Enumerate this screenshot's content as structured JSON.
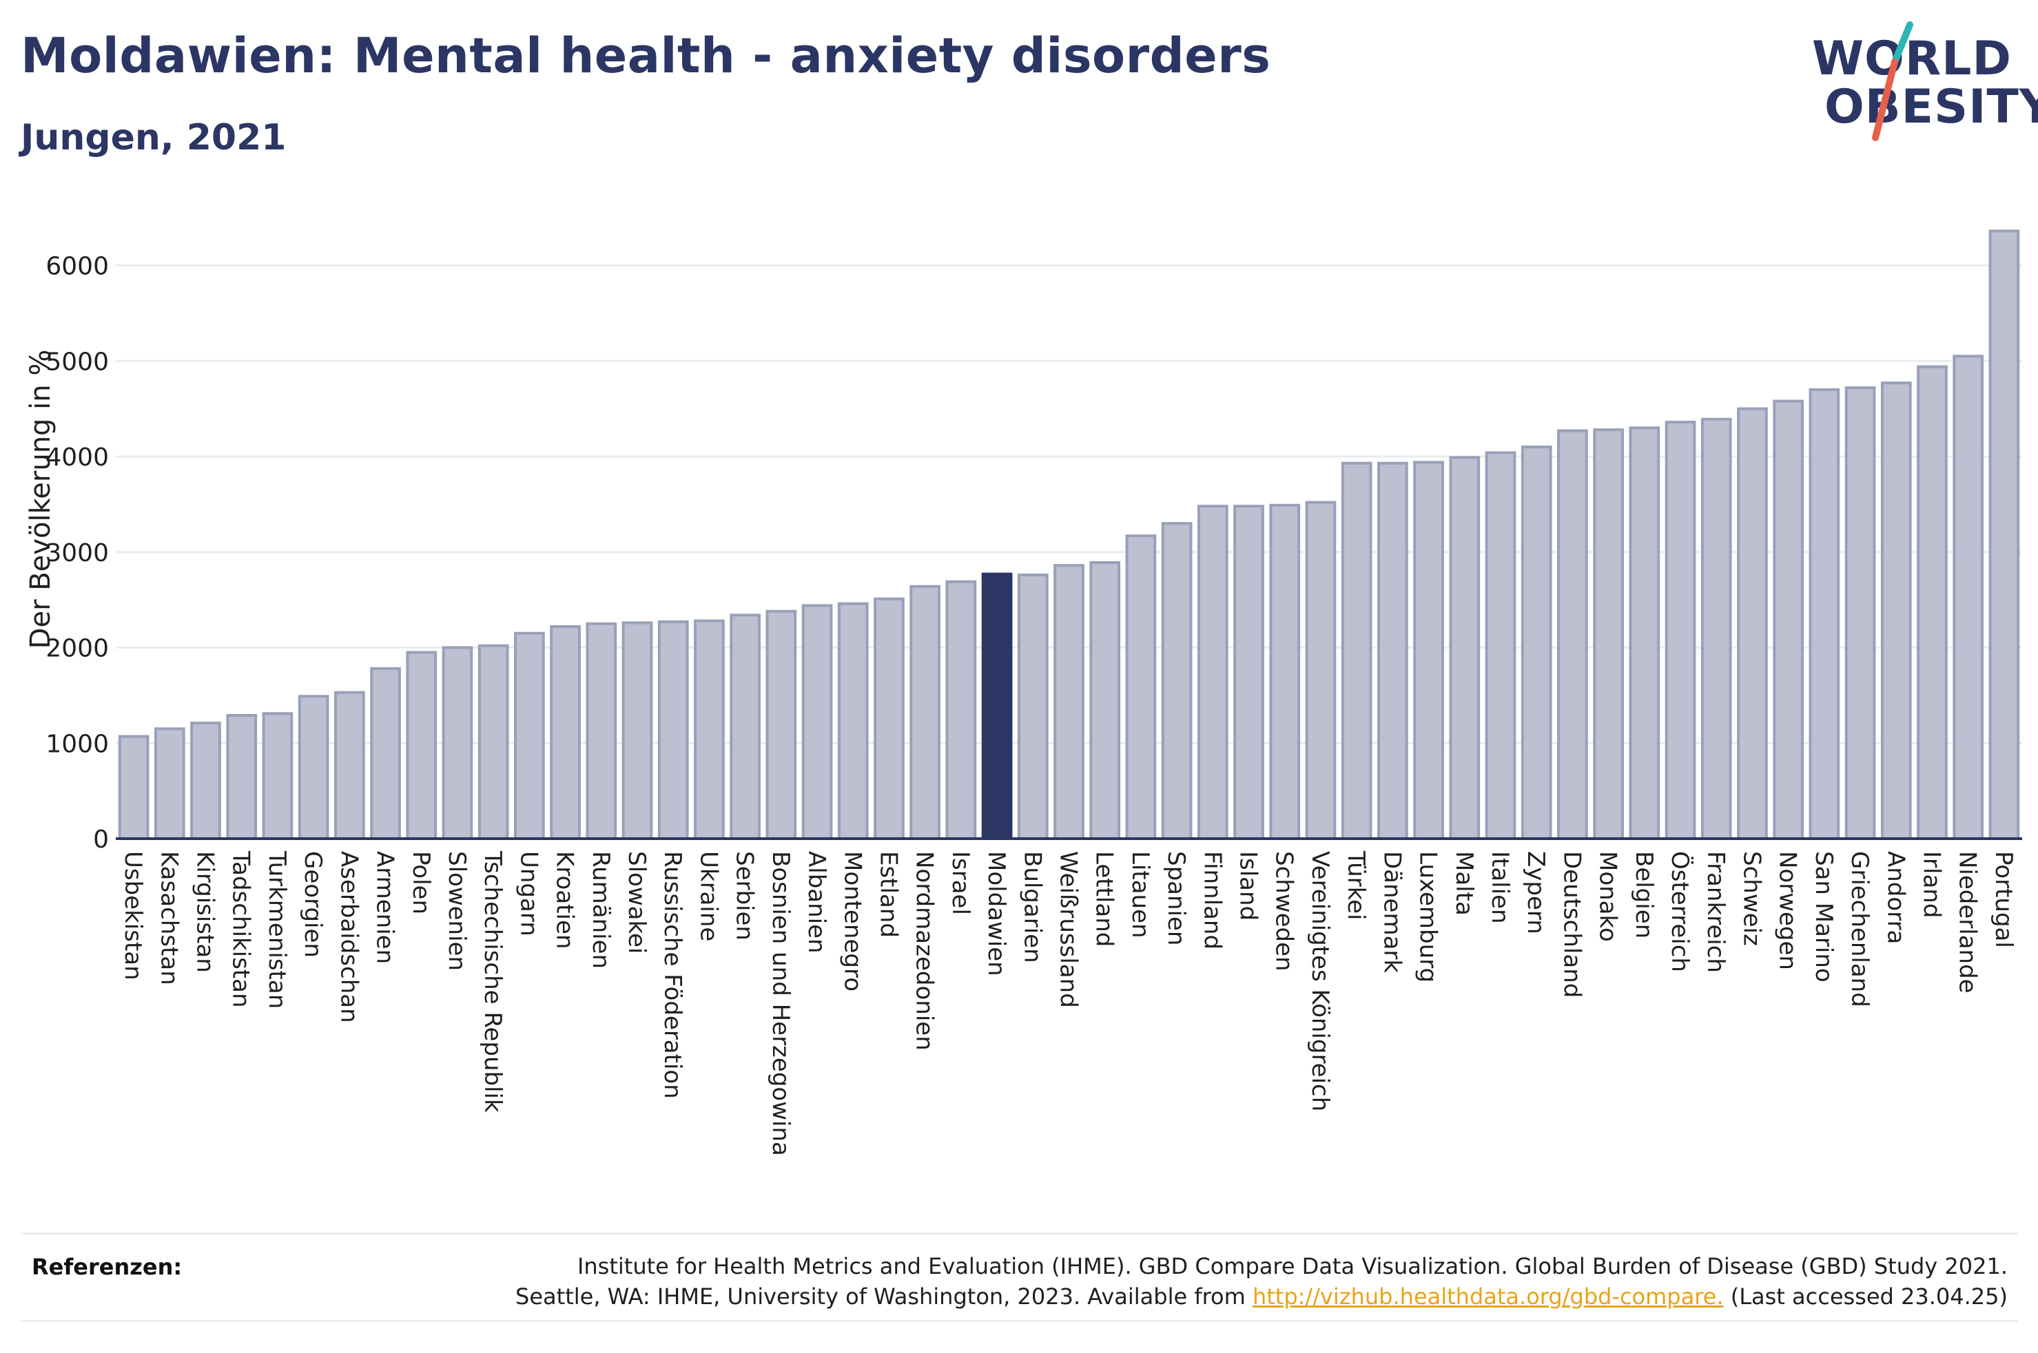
{
  "title": "Moldawien: Mental health - anxiety disorders",
  "subtitle": "Jungen, 2021",
  "logo": {
    "line1": "WORLD",
    "line2": "OBESITY",
    "accent_colors": [
      "#2bb5b5",
      "#e8604c"
    ]
  },
  "colors": {
    "bar": "#bcc0d0",
    "bar_stroke": "#9aa0b8",
    "highlight": "#2b3664",
    "axis": "#2b3664",
    "grid": "#e9ebef",
    "link": "#e8a317"
  },
  "chart_data": {
    "type": "bar",
    "ylabel": "Der Bevölkerung in %",
    "xlabel": "",
    "ylim": [
      0,
      6400
    ],
    "yticks": [
      0,
      1000,
      2000,
      3000,
      4000,
      5000,
      6000
    ],
    "grid": true,
    "highlight": "Moldawien",
    "categories": [
      "Usbekistan",
      "Kasachstan",
      "Kirgisistan",
      "Tadschikistan",
      "Turkmenistan",
      "Georgien",
      "Aserbaidschan",
      "Armenien",
      "Polen",
      "Slowenien",
      "Tschechische Republik",
      "Ungarn",
      "Kroatien",
      "Rumänien",
      "Slowakei",
      "Russische Föderation",
      "Ukraine",
      "Serbien",
      "Bosnien und Herzegowina",
      "Albanien",
      "Montenegro",
      "Estland",
      "Nordmazedonien",
      "Israel",
      "Moldawien",
      "Bulgarien",
      "Weißrussland",
      "Lettland",
      "Litauen",
      "Spanien",
      "Finnland",
      "Island",
      "Schweden",
      "Vereinigtes Königreich",
      "Türkei",
      "Dänemark",
      "Luxemburg",
      "Malta",
      "Italien",
      "Zypern",
      "Deutschland",
      "Monako",
      "Belgien",
      "Österreich",
      "Frankreich",
      "Schweiz",
      "Norwegen",
      "San Marino",
      "Griechenland",
      "Andorra",
      "Irland",
      "Niederlande",
      "Portugal"
    ],
    "values": [
      1070,
      1150,
      1210,
      1290,
      1310,
      1490,
      1530,
      1780,
      1950,
      2000,
      2020,
      2150,
      2220,
      2250,
      2260,
      2270,
      2280,
      2340,
      2380,
      2440,
      2460,
      2510,
      2640,
      2690,
      2770,
      2760,
      2860,
      2890,
      3170,
      3300,
      3480,
      3480,
      3490,
      3520,
      3930,
      3930,
      3940,
      3990,
      4040,
      4100,
      4270,
      4280,
      4300,
      4360,
      4390,
      4500,
      4580,
      4700,
      4720,
      4770,
      4940,
      5050,
      6360
    ]
  },
  "references": {
    "label": "Referenzen:",
    "line1": "Institute for Health Metrics and Evaluation (IHME). GBD Compare Data Visualization. Global Burden of Disease (GBD) Study 2021.",
    "line2_pre": "Seattle, WA: IHME, University of Washington, 2023. Available from ",
    "link": "http://vizhub.healthdata.org/gbd-compare.",
    "line2_post": " (Last accessed 23.04.25)"
  }
}
